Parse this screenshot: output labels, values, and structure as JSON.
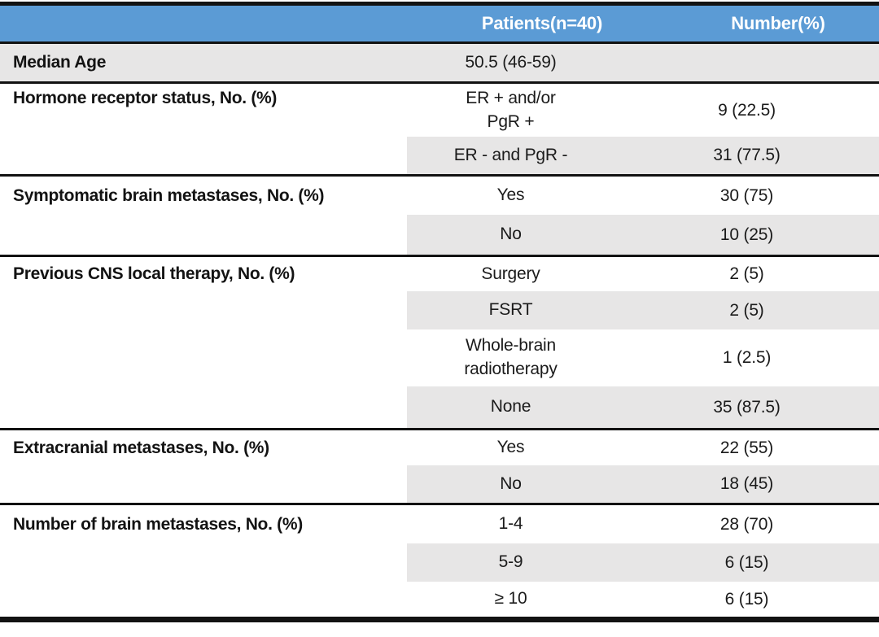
{
  "table": {
    "title_semantic": "Patient characteristics table",
    "colors": {
      "header_bg": "#5B9BD5",
      "header_text": "#FFFFFF",
      "band_bg": "#E7E6E6",
      "rule": "#121212"
    },
    "header": {
      "col_patients": "Patients(n=40)",
      "col_number": "Number(%)"
    },
    "sections": [
      {
        "label": "Median Age",
        "rows": [
          {
            "value": "50.5 (46-59)",
            "number": ""
          }
        ]
      },
      {
        "label": "Hormone receptor status, No. (%)",
        "rows": [
          {
            "value": "ER + and/or\nPgR +",
            "number": "9 (22.5)"
          },
          {
            "value": "ER - and PgR -",
            "number": "31 (77.5)"
          }
        ]
      },
      {
        "label": "Symptomatic brain metastases, No. (%)",
        "rows": [
          {
            "value": "Yes",
            "number": "30 (75)"
          },
          {
            "value": "No",
            "number": "10 (25)"
          }
        ]
      },
      {
        "label": "Previous CNS local therapy, No. (%)",
        "rows": [
          {
            "value": "Surgery",
            "number": "2 (5)"
          },
          {
            "value": "FSRT",
            "number": "2 (5)"
          },
          {
            "value": "Whole-brain\nradiotherapy",
            "number": "1 (2.5)"
          },
          {
            "value": "None",
            "number": "35 (87.5)"
          }
        ]
      },
      {
        "label": "Extracranial metastases, No. (%)",
        "rows": [
          {
            "value": "Yes",
            "number": "22 (55)"
          },
          {
            "value": "No",
            "number": "18 (45)"
          }
        ]
      },
      {
        "label": "Number of brain metastases, No. (%)",
        "rows": [
          {
            "value": "1-4",
            "number": "28 (70)"
          },
          {
            "value": "5-9",
            "number": "6 (15)"
          },
          {
            "value": "≥ 10",
            "number": "6 (15)"
          }
        ]
      }
    ]
  }
}
